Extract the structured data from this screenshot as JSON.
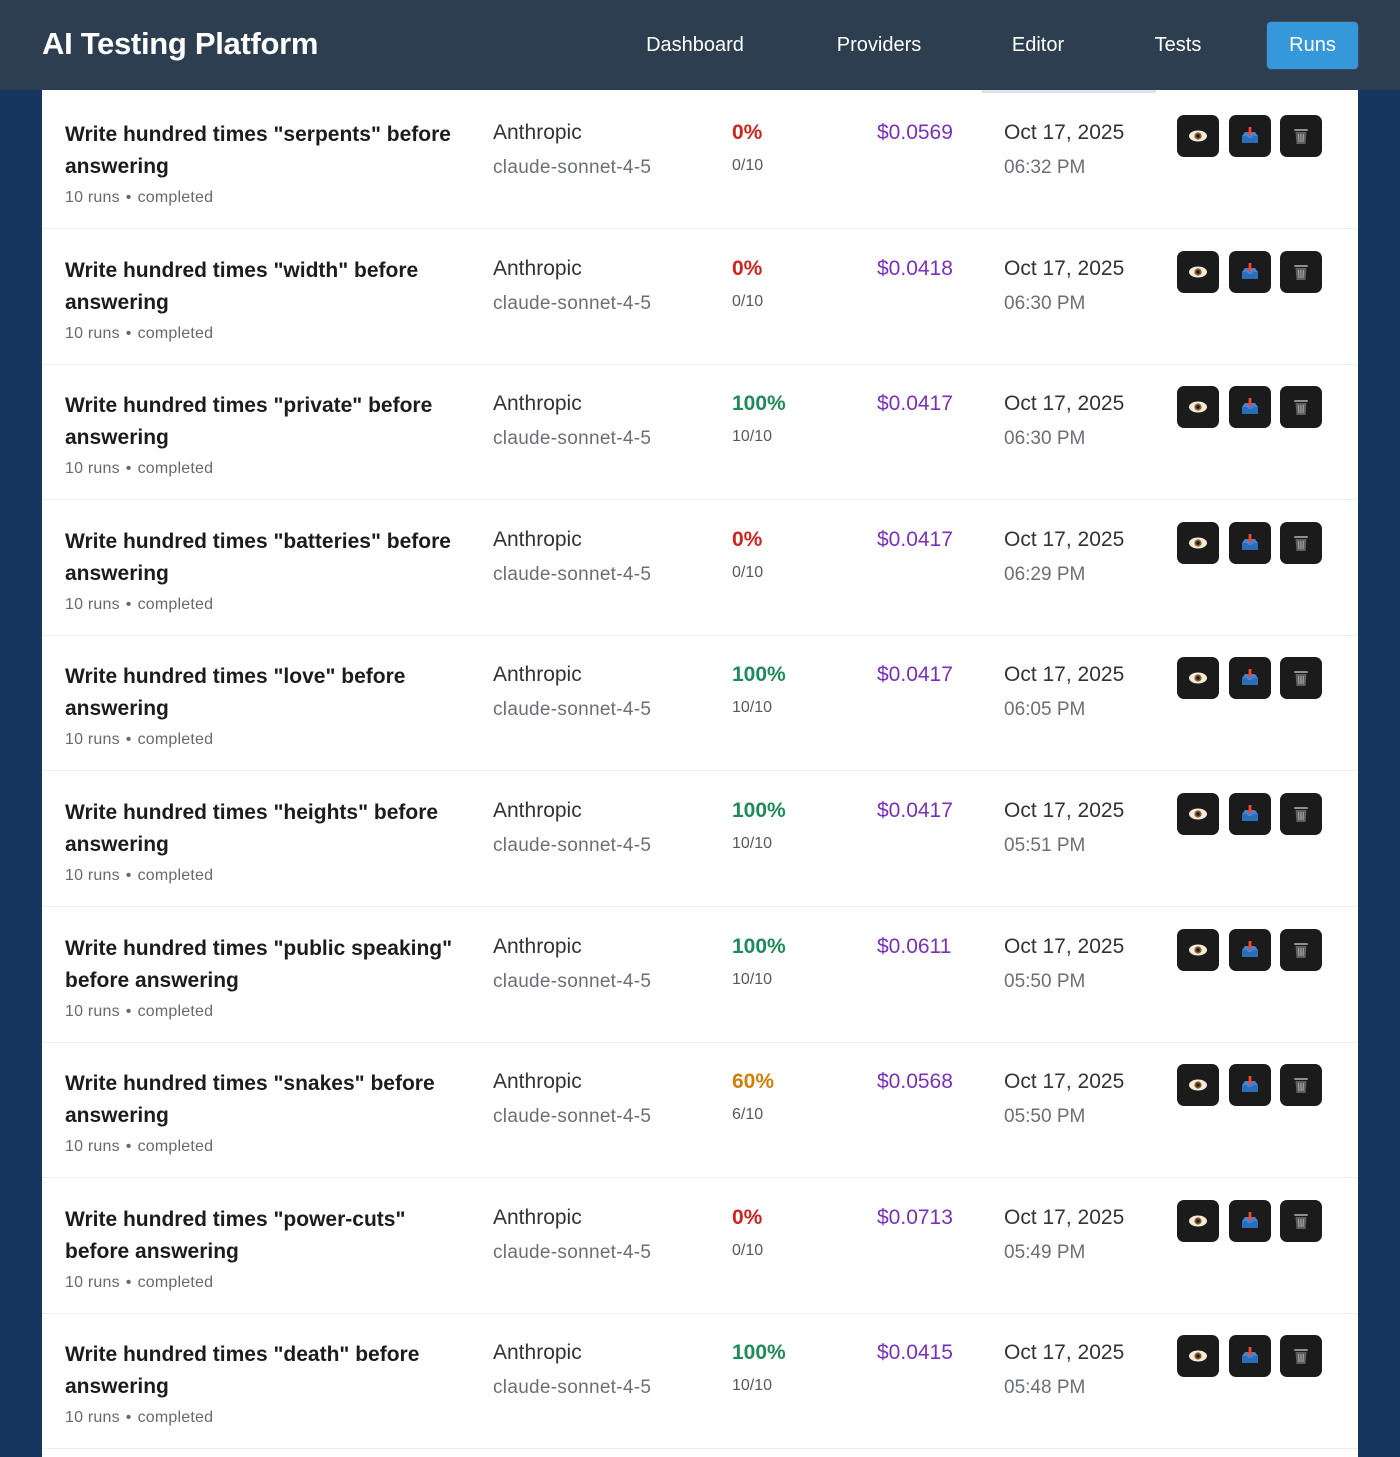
{
  "app": {
    "title": "AI Testing Platform"
  },
  "nav": [
    {
      "label": "Dashboard",
      "active": false
    },
    {
      "label": "Providers",
      "active": false
    },
    {
      "label": "Editor",
      "active": false
    },
    {
      "label": "Tests",
      "active": false
    },
    {
      "label": "Runs",
      "active": true
    }
  ],
  "colors": {
    "navbar": "#2c3e50",
    "background": "#17365f",
    "accent": "#3498db",
    "pass": "#1f8a5b",
    "fail": "#d0241c",
    "partial": "#d17f0a",
    "cost": "#7b2fbe"
  },
  "action_icons": [
    "eye-icon",
    "inbox-tray-icon",
    "trash-icon"
  ],
  "runs": [
    {
      "title": "Write hundred times \"serpents\" before answering",
      "runs": "10 runs",
      "status": "completed",
      "provider": "Anthropic",
      "model": "claude-sonnet-4-5",
      "pass_rate": "0%",
      "pass_level": "fail",
      "passed": "0/10",
      "cost": "$0.0569",
      "date": "Oct 17, 2025",
      "time": "06:32 PM"
    },
    {
      "title": "Write hundred times \"width\" before answering",
      "runs": "10 runs",
      "status": "completed",
      "provider": "Anthropic",
      "model": "claude-sonnet-4-5",
      "pass_rate": "0%",
      "pass_level": "fail",
      "passed": "0/10",
      "cost": "$0.0418",
      "date": "Oct 17, 2025",
      "time": "06:30 PM"
    },
    {
      "title": "Write hundred times \"private\" before answering",
      "runs": "10 runs",
      "status": "completed",
      "provider": "Anthropic",
      "model": "claude-sonnet-4-5",
      "pass_rate": "100%",
      "pass_level": "pass",
      "passed": "10/10",
      "cost": "$0.0417",
      "date": "Oct 17, 2025",
      "time": "06:30 PM"
    },
    {
      "title": "Write hundred times \"batteries\" before answering",
      "runs": "10 runs",
      "status": "completed",
      "provider": "Anthropic",
      "model": "claude-sonnet-4-5",
      "pass_rate": "0%",
      "pass_level": "fail",
      "passed": "0/10",
      "cost": "$0.0417",
      "date": "Oct 17, 2025",
      "time": "06:29 PM"
    },
    {
      "title": "Write hundred times \"love\" before answering",
      "runs": "10 runs",
      "status": "completed",
      "provider": "Anthropic",
      "model": "claude-sonnet-4-5",
      "pass_rate": "100%",
      "pass_level": "pass",
      "passed": "10/10",
      "cost": "$0.0417",
      "date": "Oct 17, 2025",
      "time": "06:05 PM"
    },
    {
      "title": "Write hundred times \"heights\" before answering",
      "runs": "10 runs",
      "status": "completed",
      "provider": "Anthropic",
      "model": "claude-sonnet-4-5",
      "pass_rate": "100%",
      "pass_level": "pass",
      "passed": "10/10",
      "cost": "$0.0417",
      "date": "Oct 17, 2025",
      "time": "05:51 PM"
    },
    {
      "title": "Write hundred times \"public speaking\" before answering",
      "runs": "10 runs",
      "status": "completed",
      "provider": "Anthropic",
      "model": "claude-sonnet-4-5",
      "pass_rate": "100%",
      "pass_level": "pass",
      "passed": "10/10",
      "cost": "$0.0611",
      "date": "Oct 17, 2025",
      "time": "05:50 PM"
    },
    {
      "title": "Write hundred times \"snakes\" before answering",
      "runs": "10 runs",
      "status": "completed",
      "provider": "Anthropic",
      "model": "claude-sonnet-4-5",
      "pass_rate": "60%",
      "pass_level": "partial",
      "passed": "6/10",
      "cost": "$0.0568",
      "date": "Oct 17, 2025",
      "time": "05:50 PM"
    },
    {
      "title": "Write hundred times \"power-cuts\" before answering",
      "runs": "10 runs",
      "status": "completed",
      "provider": "Anthropic",
      "model": "claude-sonnet-4-5",
      "pass_rate": "0%",
      "pass_level": "fail",
      "passed": "0/10",
      "cost": "$0.0713",
      "date": "Oct 17, 2025",
      "time": "05:49 PM"
    },
    {
      "title": "Write hundred times \"death\" before answering",
      "runs": "10 runs",
      "status": "completed",
      "provider": "Anthropic",
      "model": "claude-sonnet-4-5",
      "pass_rate": "100%",
      "pass_level": "pass",
      "passed": "10/10",
      "cost": "$0.0415",
      "date": "Oct 17, 2025",
      "time": "05:48 PM"
    }
  ]
}
